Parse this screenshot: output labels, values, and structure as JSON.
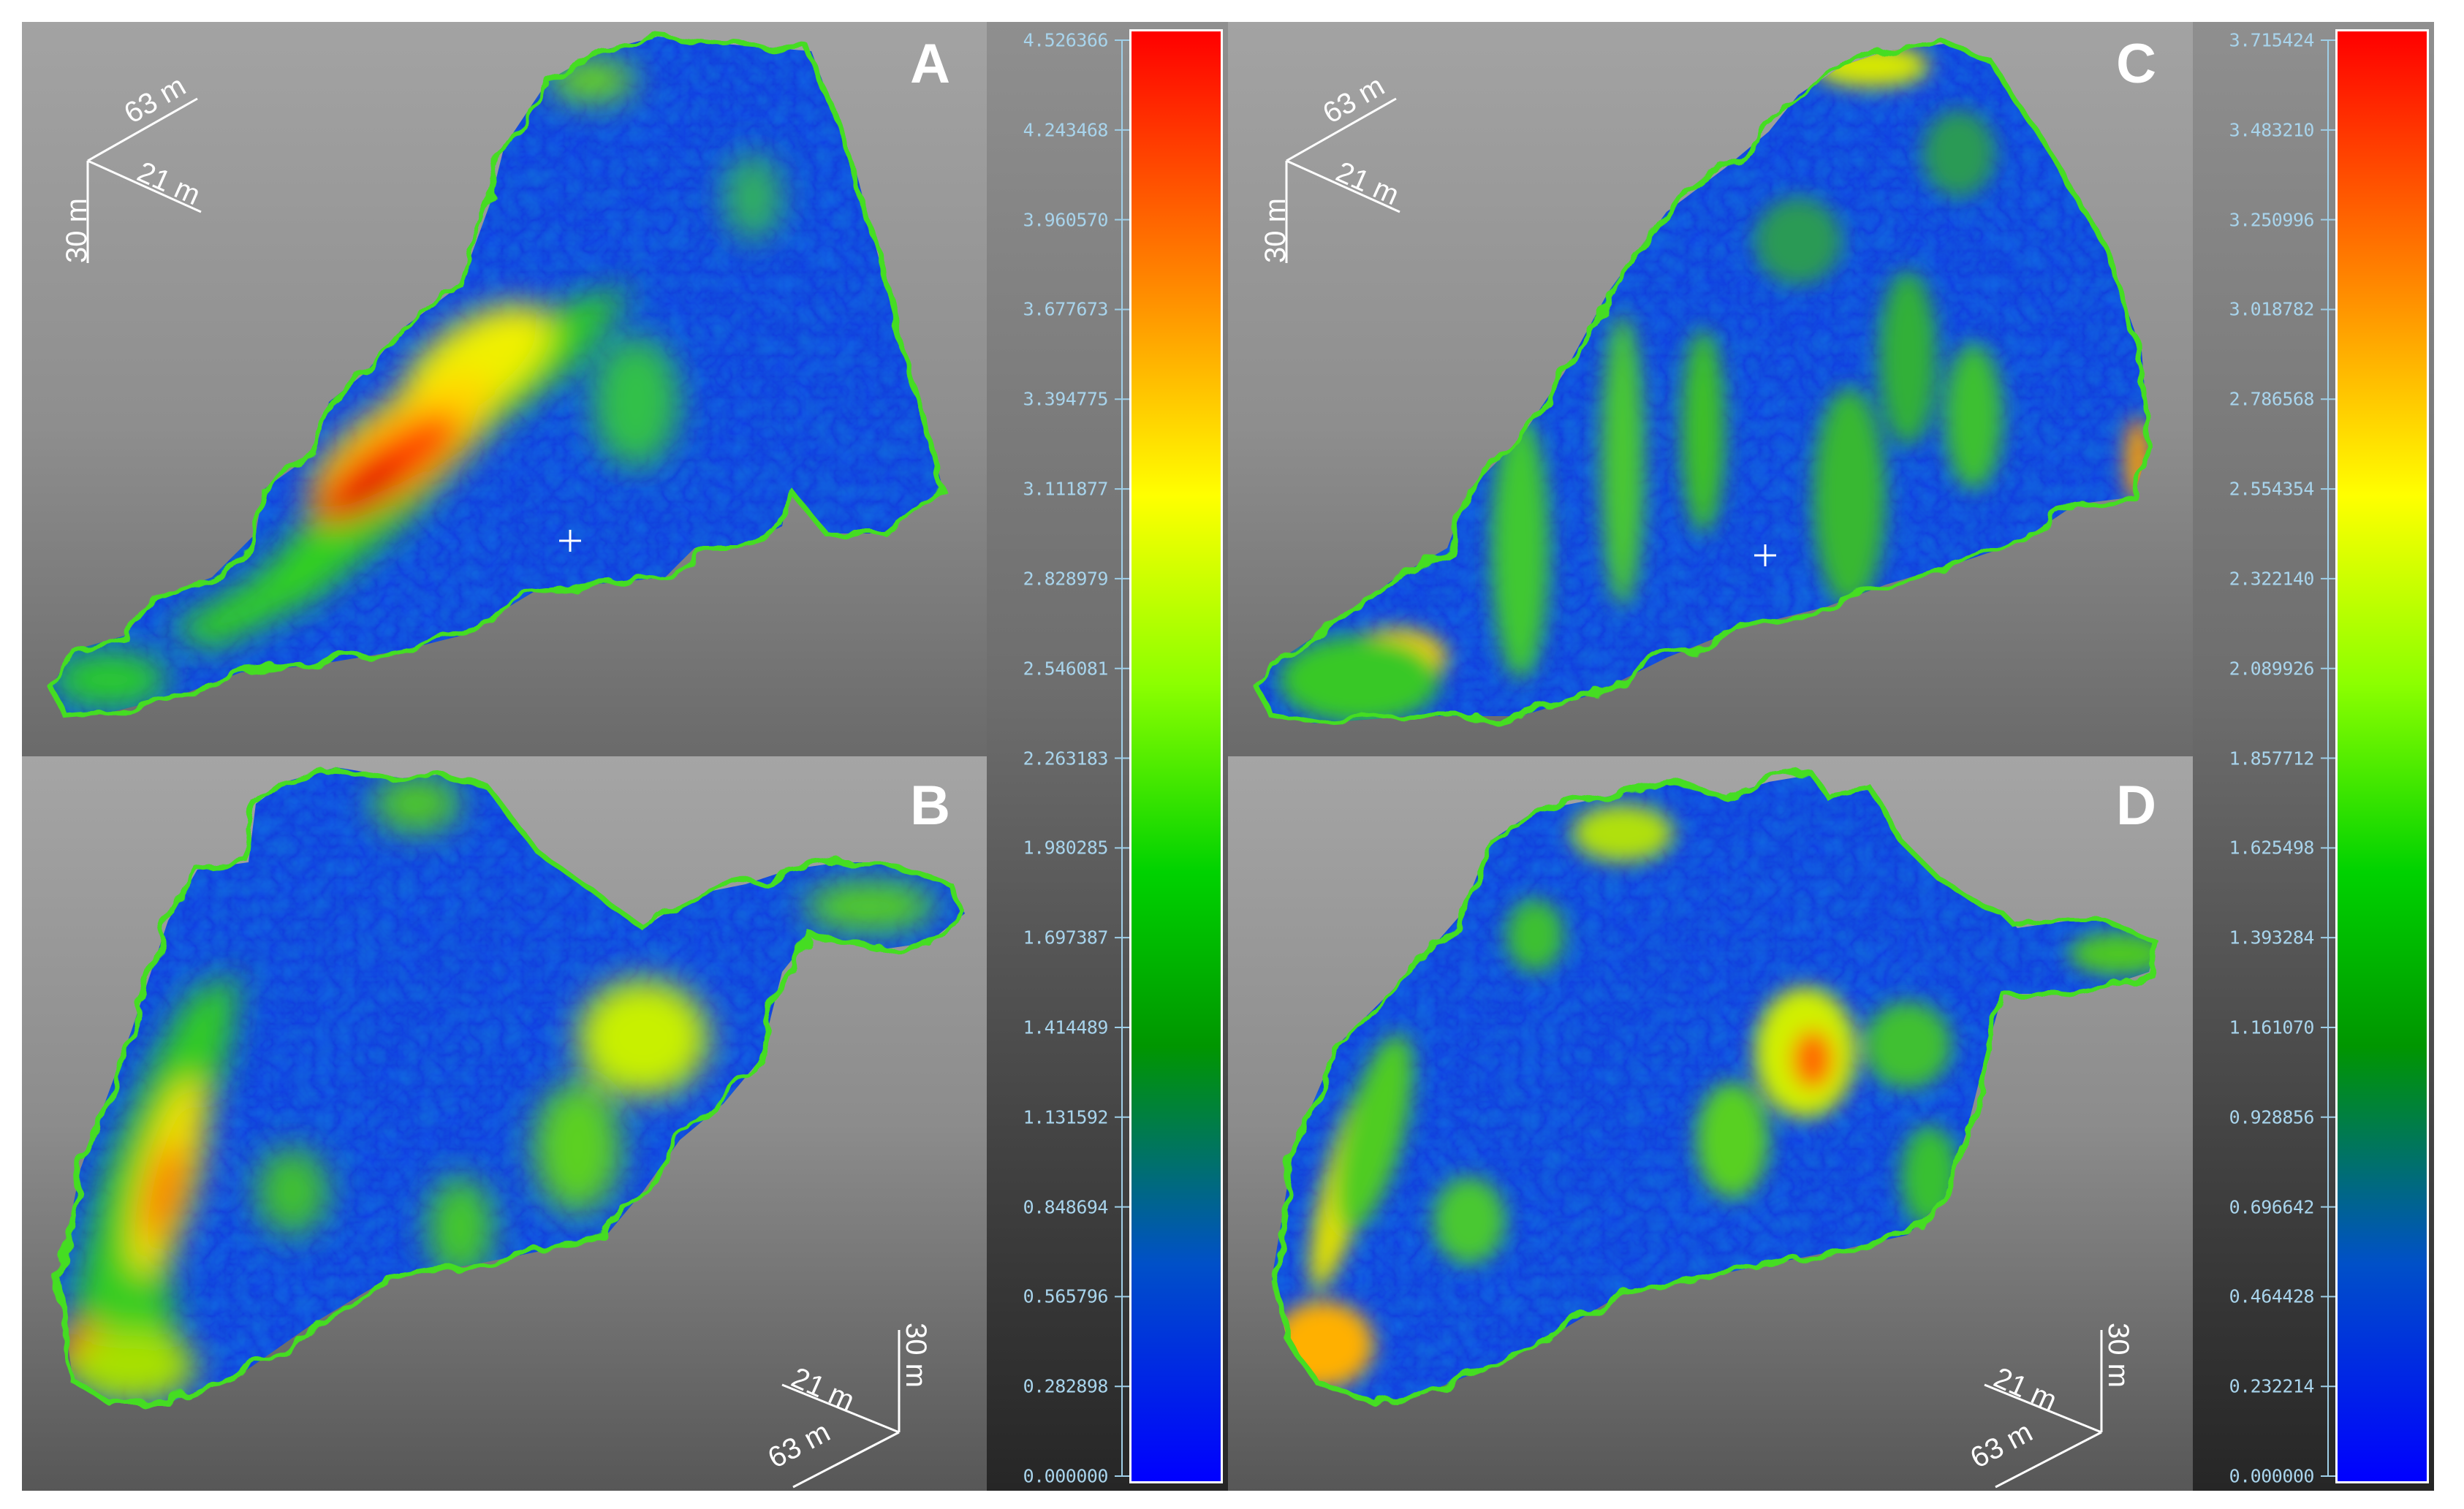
{
  "panels": [
    {
      "id": "A",
      "label": "A"
    },
    {
      "id": "B",
      "label": "B"
    },
    {
      "id": "C",
      "label": "C"
    },
    {
      "id": "D",
      "label": "D"
    }
  ],
  "axes_labels": {
    "a": "63 m",
    "b": "21 m",
    "c": "30 m"
  },
  "scales": {
    "left": {
      "ticks": [
        "4.526366",
        "4.243468",
        "3.960570",
        "3.677673",
        "3.394775",
        "3.111877",
        "2.828979",
        "2.546081",
        "2.263183",
        "1.980285",
        "1.697387",
        "1.414489",
        "1.131592",
        "0.848694",
        "0.565796",
        "0.282898",
        "0.000000"
      ]
    },
    "right": {
      "ticks": [
        "3.715424",
        "3.483210",
        "3.250996",
        "3.018782",
        "2.786568",
        "2.554354",
        "2.322140",
        "2.089926",
        "1.857712",
        "1.625498",
        "1.393284",
        "1.161070",
        "0.928856",
        "0.696642",
        "0.464428",
        "0.232214",
        "0.000000"
      ]
    }
  },
  "colors": {
    "high": "#ff0000",
    "mid": "#ffff00",
    "low_mid": "#00c800",
    "low": "#0000ff"
  }
}
